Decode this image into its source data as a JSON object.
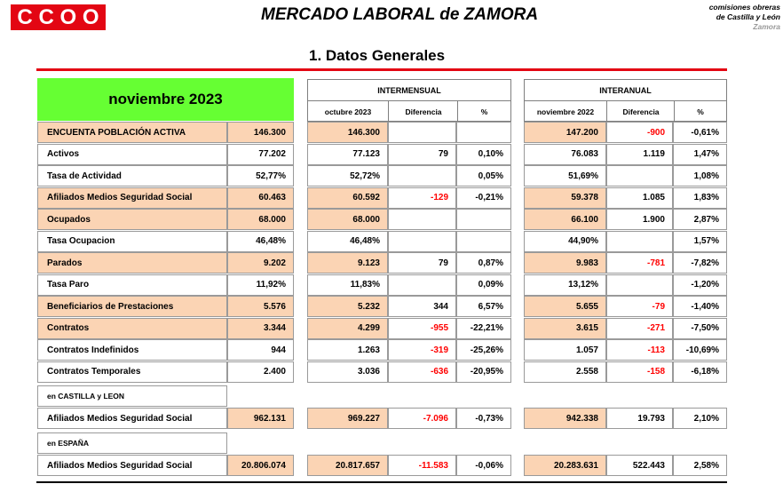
{
  "header": {
    "logo_text": "CCOO",
    "title": "MERCADO LABORAL de ZAMORA",
    "org_line1": "comisiones obreras",
    "org_line2": "de Castilla y León",
    "org_line3": "Zamora"
  },
  "section_title": "1.  Datos Generales",
  "colors": {
    "brand_red": "#e30613",
    "header_green": "#66ff33",
    "highlight_peach": "#fbd4b4",
    "negative_red": "#ff0000"
  },
  "table": {
    "month_label": "noviembre 2023",
    "intermensual": {
      "title": "INTERMENSUAL",
      "col_prev": "octubre 2023",
      "col_diff": "Diferencia",
      "col_pct": "%"
    },
    "interanual": {
      "title": "INTERANUAL",
      "col_prev": "noviembre 2022",
      "col_diff": "Diferencia",
      "col_pct": "%"
    },
    "rows": [
      {
        "label": "ENCUENTA POBLACIÓN ACTIVA",
        "value": "146.300",
        "m_prev": "146.300",
        "m_diff": "",
        "m_pct": "",
        "y_prev": "147.200",
        "y_diff": "-900",
        "y_pct": "-0,61%",
        "hl": true
      },
      {
        "label": "Activos",
        "value": "77.202",
        "m_prev": "77.123",
        "m_diff": "79",
        "m_pct": "0,10%",
        "y_prev": "76.083",
        "y_diff": "1.119",
        "y_pct": "1,47%",
        "hl": false
      },
      {
        "label": "Tasa de Actividad",
        "value": "52,77%",
        "m_prev": "52,72%",
        "m_diff": "",
        "m_pct": "0,05%",
        "y_prev": "51,69%",
        "y_diff": "",
        "y_pct": "1,08%",
        "hl": false
      },
      {
        "label": "Afiliados Medios Seguridad Social",
        "value": "60.463",
        "m_prev": "60.592",
        "m_diff": "-129",
        "m_pct": "-0,21%",
        "y_prev": "59.378",
        "y_diff": "1.085",
        "y_pct": "1,83%",
        "hl": true
      },
      {
        "label": "Ocupados",
        "value": "68.000",
        "m_prev": "68.000",
        "m_diff": "",
        "m_pct": "",
        "y_prev": "66.100",
        "y_diff": "1.900",
        "y_pct": "2,87%",
        "hl": true
      },
      {
        "label": "Tasa Ocupacion",
        "value": "46,48%",
        "m_prev": "46,48%",
        "m_diff": "",
        "m_pct": "",
        "y_prev": "44,90%",
        "y_diff": "",
        "y_pct": "1,57%",
        "hl": false
      },
      {
        "label": "Parados",
        "value": "9.202",
        "m_prev": "9.123",
        "m_diff": "79",
        "m_pct": "0,87%",
        "y_prev": "9.983",
        "y_diff": "-781",
        "y_pct": "-7,82%",
        "hl": true
      },
      {
        "label": "Tasa Paro",
        "value": "11,92%",
        "m_prev": "11,83%",
        "m_diff": "",
        "m_pct": "0,09%",
        "y_prev": "13,12%",
        "y_diff": "",
        "y_pct": "-1,20%",
        "hl": false
      },
      {
        "label": "Beneficiarios de Prestaciones",
        "value": "5.576",
        "m_prev": "5.232",
        "m_diff": "344",
        "m_pct": "6,57%",
        "y_prev": "5.655",
        "y_diff": "-79",
        "y_pct": "-1,40%",
        "hl": true
      },
      {
        "label": "Contratos",
        "value": "3.344",
        "m_prev": "4.299",
        "m_diff": "-955",
        "m_pct": "-22,21%",
        "y_prev": "3.615",
        "y_diff": "-271",
        "y_pct": "-7,50%",
        "hl": true
      },
      {
        "label": "Contratos Indefinidos",
        "value": "944",
        "m_prev": "1.263",
        "m_diff": "-319",
        "m_pct": "-25,26%",
        "y_prev": "1.057",
        "y_diff": "-113",
        "y_pct": "-10,69%",
        "hl": false
      },
      {
        "label": "Contratos Temporales",
        "value": "2.400",
        "m_prev": "3.036",
        "m_diff": "-636",
        "m_pct": "-20,95%",
        "y_prev": "2.558",
        "y_diff": "-158",
        "y_pct": "-6,18%",
        "hl": false
      }
    ],
    "regions": [
      {
        "region_label": "en  CASTILLA y LEON",
        "label": "Afiliados Medios Seguridad Social",
        "value": "962.131",
        "m_prev": "969.227",
        "m_diff": "-7.096",
        "m_pct": "-0,73%",
        "y_prev": "942.338",
        "y_diff": "19.793",
        "y_pct": "2,10%"
      },
      {
        "region_label": "en  ESPAÑA",
        "label": "Afiliados Medios Seguridad Social",
        "value": "20.806.074",
        "m_prev": "20.817.657",
        "m_diff": "-11.583",
        "m_pct": "-0,06%",
        "y_prev": "20.283.631",
        "y_diff": "522.443",
        "y_pct": "2,58%"
      }
    ]
  }
}
